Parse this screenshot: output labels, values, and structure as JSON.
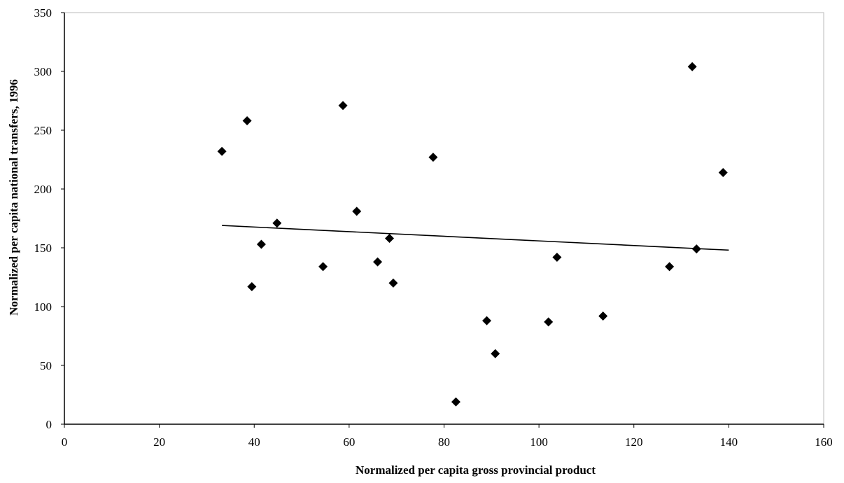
{
  "chart_data": {
    "type": "scatter",
    "title": "",
    "xlabel": "Normalized per capita gross provincial product",
    "ylabel": "Normalized per capita national transfers, 1996",
    "xlim": [
      0,
      160
    ],
    "ylim": [
      0,
      350
    ],
    "x_ticks": [
      "0",
      "20",
      "40",
      "60",
      "80",
      "100",
      "120",
      "140",
      "160"
    ],
    "y_ticks": [
      "0",
      "50",
      "100",
      "150",
      "200",
      "250",
      "300",
      "350"
    ],
    "grid": false,
    "legend": "none",
    "marker": "diamond",
    "marker_color": "#000000",
    "points": [
      {
        "x": 33.2,
        "y": 232
      },
      {
        "x": 38.5,
        "y": 258
      },
      {
        "x": 39.5,
        "y": 117
      },
      {
        "x": 41.5,
        "y": 153
      },
      {
        "x": 44.8,
        "y": 171
      },
      {
        "x": 54.5,
        "y": 134
      },
      {
        "x": 58.7,
        "y": 271
      },
      {
        "x": 61.6,
        "y": 181
      },
      {
        "x": 66.0,
        "y": 138
      },
      {
        "x": 68.5,
        "y": 158
      },
      {
        "x": 69.3,
        "y": 120
      },
      {
        "x": 77.7,
        "y": 227
      },
      {
        "x": 82.5,
        "y": 19
      },
      {
        "x": 89.0,
        "y": 88
      },
      {
        "x": 90.8,
        "y": 60
      },
      {
        "x": 102.0,
        "y": 87
      },
      {
        "x": 103.8,
        "y": 142
      },
      {
        "x": 113.5,
        "y": 92
      },
      {
        "x": 127.5,
        "y": 134
      },
      {
        "x": 132.3,
        "y": 304
      },
      {
        "x": 133.2,
        "y": 149
      },
      {
        "x": 138.8,
        "y": 214
      }
    ],
    "trendline": {
      "x": [
        33.2,
        140
      ],
      "y": [
        169,
        148
      ]
    }
  }
}
